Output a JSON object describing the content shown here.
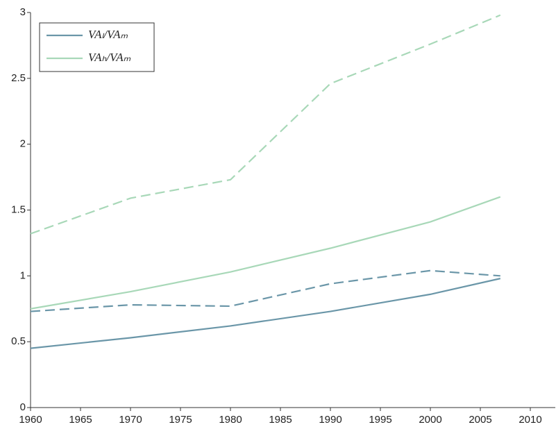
{
  "chart_data": {
    "type": "line",
    "x": [
      1960,
      1970,
      1980,
      1990,
      2000,
      2007
    ],
    "series": [
      {
        "name": "VAₗ/VAₘ",
        "color": "#6a96a8",
        "dash": false,
        "values": [
          0.45,
          0.53,
          0.62,
          0.73,
          0.86,
          0.98
        ]
      },
      {
        "name": "VAₕ/VAₘ",
        "color": "#a8d8b8",
        "dash": false,
        "values": [
          0.75,
          0.88,
          1.03,
          1.21,
          1.41,
          1.6
        ]
      },
      {
        "color": "#6a96a8",
        "dash": true,
        "values": [
          0.73,
          0.78,
          0.77,
          0.94,
          1.04,
          1.0
        ]
      },
      {
        "color": "#a8d8b8",
        "dash": true,
        "values": [
          1.32,
          1.59,
          1.73,
          2.46,
          2.76,
          2.98
        ]
      }
    ],
    "xlim": [
      1960,
      2012.5
    ],
    "xticks": [
      1960,
      1965,
      1970,
      1975,
      1980,
      1985,
      1990,
      1995,
      2000,
      2005,
      2010
    ],
    "ylim": [
      0,
      3
    ],
    "yticks": [
      0,
      0.5,
      1,
      1.5,
      2,
      2.5,
      3
    ],
    "legend": "upper left"
  }
}
